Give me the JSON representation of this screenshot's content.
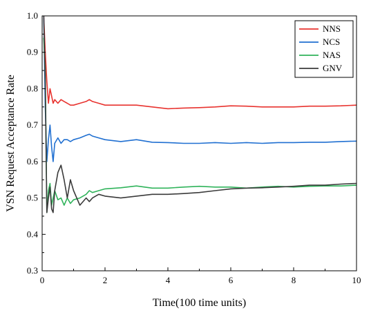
{
  "chart_data": {
    "type": "line",
    "title": "",
    "xlabel": "Time(100 time units)",
    "ylabel": "VSN Request Acceptance Rate",
    "xlim": [
      0,
      10
    ],
    "ylim": [
      0.3,
      1.0
    ],
    "x_ticks": [
      0,
      2,
      4,
      6,
      8,
      10
    ],
    "y_ticks": [
      0.3,
      0.4,
      0.5,
      0.6,
      0.7,
      0.8,
      0.9,
      1.0
    ],
    "x_tick_labels": [
      "0",
      "2",
      "4",
      "6",
      "8",
      "10"
    ],
    "y_tick_labels": [
      "0.3",
      "0.4",
      "0.5",
      "0.6",
      "0.7",
      "0.8",
      "0.9",
      "1.0"
    ],
    "grid": false,
    "legend_position": "top-right",
    "series": [
      {
        "name": "NNS",
        "color": "#e8322e",
        "x": [
          0.05,
          0.1,
          0.15,
          0.2,
          0.25,
          0.3,
          0.35,
          0.4,
          0.5,
          0.6,
          0.7,
          0.8,
          0.9,
          1.0,
          1.2,
          1.4,
          1.5,
          1.6,
          1.8,
          2.0,
          2.5,
          3.0,
          3.5,
          4.0,
          4.5,
          5.0,
          5.5,
          6.0,
          6.5,
          7.0,
          7.5,
          8.0,
          8.5,
          9.0,
          9.5,
          10.0
        ],
        "values": [
          1.0,
          0.9,
          0.82,
          0.76,
          0.8,
          0.78,
          0.76,
          0.77,
          0.76,
          0.77,
          0.765,
          0.76,
          0.755,
          0.755,
          0.76,
          0.765,
          0.77,
          0.765,
          0.76,
          0.755,
          0.755,
          0.755,
          0.75,
          0.745,
          0.747,
          0.748,
          0.75,
          0.753,
          0.752,
          0.75,
          0.75,
          0.75,
          0.752,
          0.752,
          0.753,
          0.755
        ]
      },
      {
        "name": "NCS",
        "color": "#1f6fd1",
        "x": [
          0.05,
          0.1,
          0.15,
          0.2,
          0.25,
          0.3,
          0.35,
          0.4,
          0.5,
          0.6,
          0.7,
          0.8,
          0.9,
          1.0,
          1.2,
          1.4,
          1.5,
          1.6,
          1.8,
          2.0,
          2.5,
          3.0,
          3.5,
          4.0,
          4.5,
          5.0,
          5.5,
          6.0,
          6.5,
          7.0,
          7.5,
          8.0,
          8.5,
          9.0,
          9.5,
          10.0
        ],
        "values": [
          1.0,
          0.75,
          0.6,
          0.66,
          0.7,
          0.64,
          0.6,
          0.65,
          0.665,
          0.65,
          0.66,
          0.66,
          0.655,
          0.66,
          0.665,
          0.672,
          0.675,
          0.67,
          0.665,
          0.66,
          0.655,
          0.66,
          0.653,
          0.652,
          0.65,
          0.65,
          0.652,
          0.65,
          0.652,
          0.65,
          0.652,
          0.652,
          0.653,
          0.653,
          0.655,
          0.656
        ]
      },
      {
        "name": "NAS",
        "color": "#2fb35a",
        "x": [
          0.05,
          0.1,
          0.15,
          0.2,
          0.25,
          0.3,
          0.35,
          0.4,
          0.5,
          0.6,
          0.7,
          0.8,
          0.9,
          1.0,
          1.2,
          1.4,
          1.5,
          1.6,
          1.8,
          2.0,
          2.5,
          3.0,
          3.5,
          4.0,
          4.5,
          5.0,
          5.5,
          6.0,
          6.5,
          7.0,
          7.5,
          8.0,
          8.5,
          9.0,
          9.5,
          10.0
        ],
        "values": [
          0.94,
          0.85,
          0.46,
          0.52,
          0.54,
          0.48,
          0.5,
          0.52,
          0.495,
          0.5,
          0.48,
          0.5,
          0.485,
          0.495,
          0.5,
          0.51,
          0.52,
          0.515,
          0.52,
          0.525,
          0.528,
          0.533,
          0.527,
          0.527,
          0.53,
          0.532,
          0.53,
          0.53,
          0.527,
          0.53,
          0.532,
          0.53,
          0.532,
          0.533,
          0.533,
          0.535
        ]
      },
      {
        "name": "GNV",
        "color": "#3a3a3a",
        "x": [
          0.05,
          0.1,
          0.15,
          0.2,
          0.25,
          0.3,
          0.35,
          0.4,
          0.5,
          0.6,
          0.7,
          0.8,
          0.9,
          1.0,
          1.2,
          1.4,
          1.5,
          1.6,
          1.8,
          2.0,
          2.5,
          3.0,
          3.5,
          4.0,
          4.5,
          5.0,
          5.5,
          6.0,
          6.5,
          7.0,
          7.5,
          8.0,
          8.5,
          9.0,
          9.5,
          10.0
        ],
        "values": [
          1.0,
          0.82,
          0.46,
          0.5,
          0.53,
          0.47,
          0.46,
          0.52,
          0.57,
          0.59,
          0.55,
          0.5,
          0.55,
          0.52,
          0.48,
          0.5,
          0.49,
          0.5,
          0.51,
          0.505,
          0.5,
          0.505,
          0.51,
          0.51,
          0.512,
          0.515,
          0.52,
          0.525,
          0.527,
          0.528,
          0.53,
          0.532,
          0.535,
          0.535,
          0.538,
          0.54
        ]
      }
    ]
  }
}
